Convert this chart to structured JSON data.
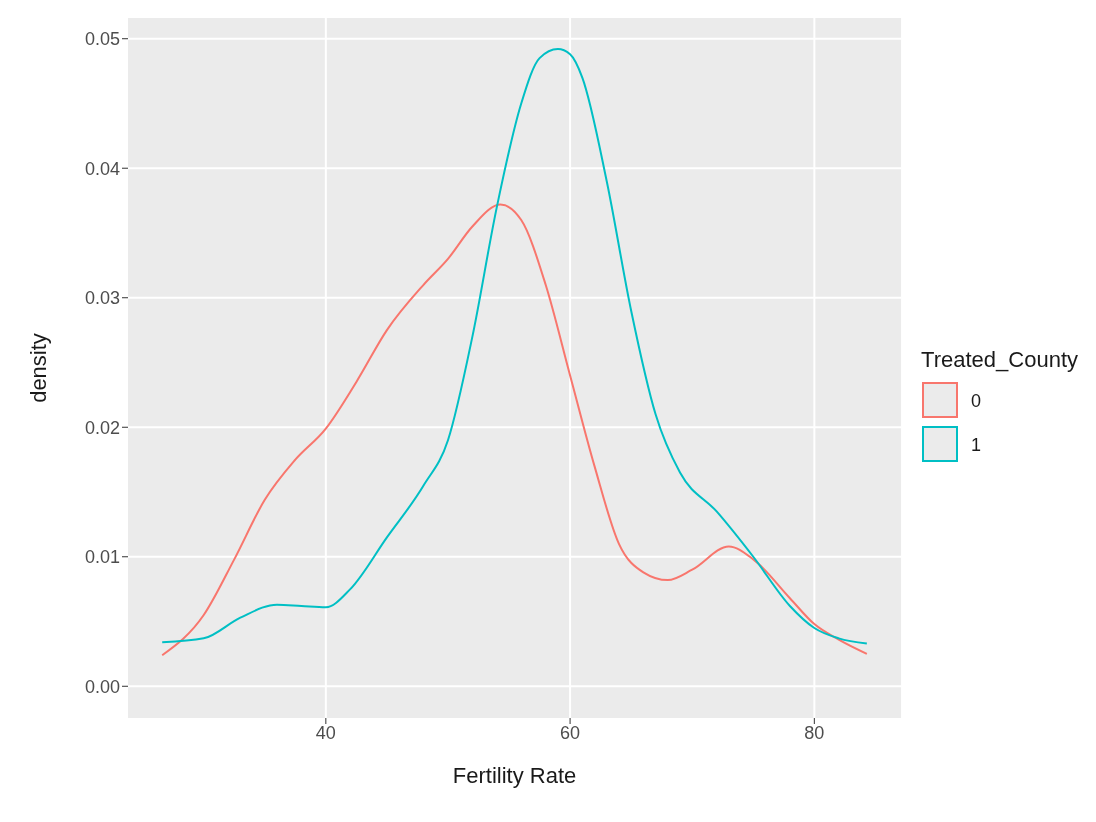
{
  "chart_data": {
    "type": "line",
    "xlabel": "Fertility Rate",
    "ylabel": "density",
    "legend_title": "Treated_County",
    "xlim": [
      23.8,
      87.1
    ],
    "xticks": [
      40,
      60,
      80
    ],
    "ylim": [
      -0.00245,
      0.0516
    ],
    "yticks": [
      {
        "value": 0,
        "label": "0.00"
      },
      {
        "value": 0.01,
        "label": "0.01"
      },
      {
        "value": 0.02,
        "label": "0.02"
      },
      {
        "value": 0.03,
        "label": "0.03"
      },
      {
        "value": 0.04,
        "label": "0.04"
      },
      {
        "value": 0.05,
        "label": "0.05"
      }
    ],
    "grid": true,
    "legend": "right",
    "marker": "none",
    "line_style": "solid",
    "series": [
      {
        "name": "0",
        "color": "#f8766d",
        "x": [
          26.6,
          30,
          32.5,
          35,
          37.5,
          40,
          42.5,
          45,
          48,
          50,
          52,
          54.3,
          56,
          58,
          60,
          62,
          64,
          66,
          68,
          70,
          73,
          75,
          78,
          80,
          82,
          84.3
        ],
        "values": [
          0.0024,
          0.0055,
          0.0098,
          0.0144,
          0.0175,
          0.0199,
          0.0235,
          0.0275,
          0.031,
          0.033,
          0.0355,
          0.0372,
          0.036,
          0.031,
          0.024,
          0.017,
          0.011,
          0.0088,
          0.0082,
          0.009,
          0.0108,
          0.0098,
          0.0068,
          0.0048,
          0.0036,
          0.0025
        ]
      },
      {
        "name": "1",
        "color": "#00bfc4",
        "x": [
          26.6,
          30,
          33,
          36,
          38,
          40,
          42,
          45,
          48,
          50,
          52,
          54,
          56,
          57.5,
          59,
          60,
          61,
          63,
          65,
          67,
          69,
          72,
          75,
          78,
          80,
          82,
          84.3
        ],
        "values": [
          0.0034,
          0.0037,
          0.0053,
          0.0063,
          0.0062,
          0.0061,
          0.0075,
          0.0115,
          0.0155,
          0.019,
          0.027,
          0.037,
          0.045,
          0.0485,
          0.0492,
          0.0488,
          0.047,
          0.039,
          0.029,
          0.021,
          0.0165,
          0.0135,
          0.01,
          0.0062,
          0.0045,
          0.0037,
          0.0033
        ]
      }
    ]
  }
}
